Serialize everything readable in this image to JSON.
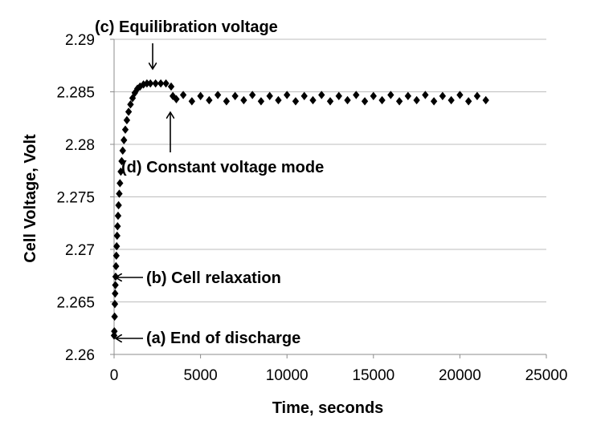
{
  "chart_data": {
    "type": "scatter",
    "title": "",
    "xlabel": "Time, seconds",
    "ylabel": "Cell Voltage, Volt",
    "xlim": [
      0,
      25000
    ],
    "ylim": [
      2.26,
      2.29
    ],
    "x_ticks": [
      "0",
      "5000",
      "10000",
      "15000",
      "20000",
      "25000"
    ],
    "y_ticks": [
      "2.26",
      "2.265",
      "2.27",
      "2.275",
      "2.28",
      "2.285",
      "2.29"
    ],
    "grid": "horizontal",
    "marker": "diamond",
    "marker_color": "#000000",
    "series": [
      {
        "points": [
          [
            0,
            2.2618
          ],
          [
            15,
            2.2622
          ],
          [
            30,
            2.2636
          ],
          [
            45,
            2.2648
          ],
          [
            60,
            2.2658
          ],
          [
            75,
            2.2666
          ],
          [
            90,
            2.2674
          ],
          [
            110,
            2.2684
          ],
          [
            130,
            2.2694
          ],
          [
            150,
            2.2703
          ],
          [
            175,
            2.2713
          ],
          [
            200,
            2.2722
          ],
          [
            230,
            2.2732
          ],
          [
            260,
            2.2742
          ],
          [
            300,
            2.2753
          ],
          [
            340,
            2.2763
          ],
          [
            390,
            2.2774
          ],
          [
            440,
            2.2784
          ],
          [
            500,
            2.2794
          ],
          [
            570,
            2.2804
          ],
          [
            650,
            2.2814
          ],
          [
            740,
            2.2823
          ],
          [
            840,
            2.2831
          ],
          [
            950,
            2.2838
          ],
          [
            1070,
            2.2844
          ],
          [
            1200,
            2.2849
          ],
          [
            1350,
            2.2853
          ],
          [
            1500,
            2.2855
          ],
          [
            1700,
            2.2857
          ],
          [
            1900,
            2.2858
          ],
          [
            2100,
            2.2858
          ],
          [
            2400,
            2.2858
          ],
          [
            2700,
            2.2858
          ],
          [
            3000,
            2.2858
          ],
          [
            3300,
            2.2855
          ],
          [
            3400,
            2.2846
          ],
          [
            3600,
            2.2843
          ],
          [
            4000,
            2.2847
          ],
          [
            4500,
            2.2841
          ],
          [
            5000,
            2.2846
          ],
          [
            5500,
            2.2842
          ],
          [
            6000,
            2.2847
          ],
          [
            6500,
            2.2841
          ],
          [
            7000,
            2.2846
          ],
          [
            7500,
            2.2842
          ],
          [
            8000,
            2.2847
          ],
          [
            8500,
            2.2841
          ],
          [
            9000,
            2.2846
          ],
          [
            9500,
            2.2842
          ],
          [
            10000,
            2.2847
          ],
          [
            10500,
            2.2841
          ],
          [
            11000,
            2.2846
          ],
          [
            11500,
            2.2842
          ],
          [
            12000,
            2.2847
          ],
          [
            12500,
            2.2841
          ],
          [
            13000,
            2.2846
          ],
          [
            13500,
            2.2842
          ],
          [
            14000,
            2.2847
          ],
          [
            14500,
            2.2841
          ],
          [
            15000,
            2.2846
          ],
          [
            15500,
            2.2842
          ],
          [
            16000,
            2.2847
          ],
          [
            16500,
            2.2841
          ],
          [
            17000,
            2.2846
          ],
          [
            17500,
            2.2842
          ],
          [
            18000,
            2.2847
          ],
          [
            18500,
            2.2841
          ],
          [
            19000,
            2.2846
          ],
          [
            19500,
            2.2842
          ],
          [
            20000,
            2.2847
          ],
          [
            20500,
            2.2841
          ],
          [
            21000,
            2.2846
          ],
          [
            21500,
            2.2842
          ]
        ]
      }
    ],
    "annotations": [
      {
        "id": "c",
        "text": "(c) Equilibration voltage"
      },
      {
        "id": "d",
        "text": "(d) Constant voltage mode"
      },
      {
        "id": "b",
        "text": "(b) Cell relaxation"
      },
      {
        "id": "a",
        "text": "(a) End of discharge"
      }
    ]
  }
}
